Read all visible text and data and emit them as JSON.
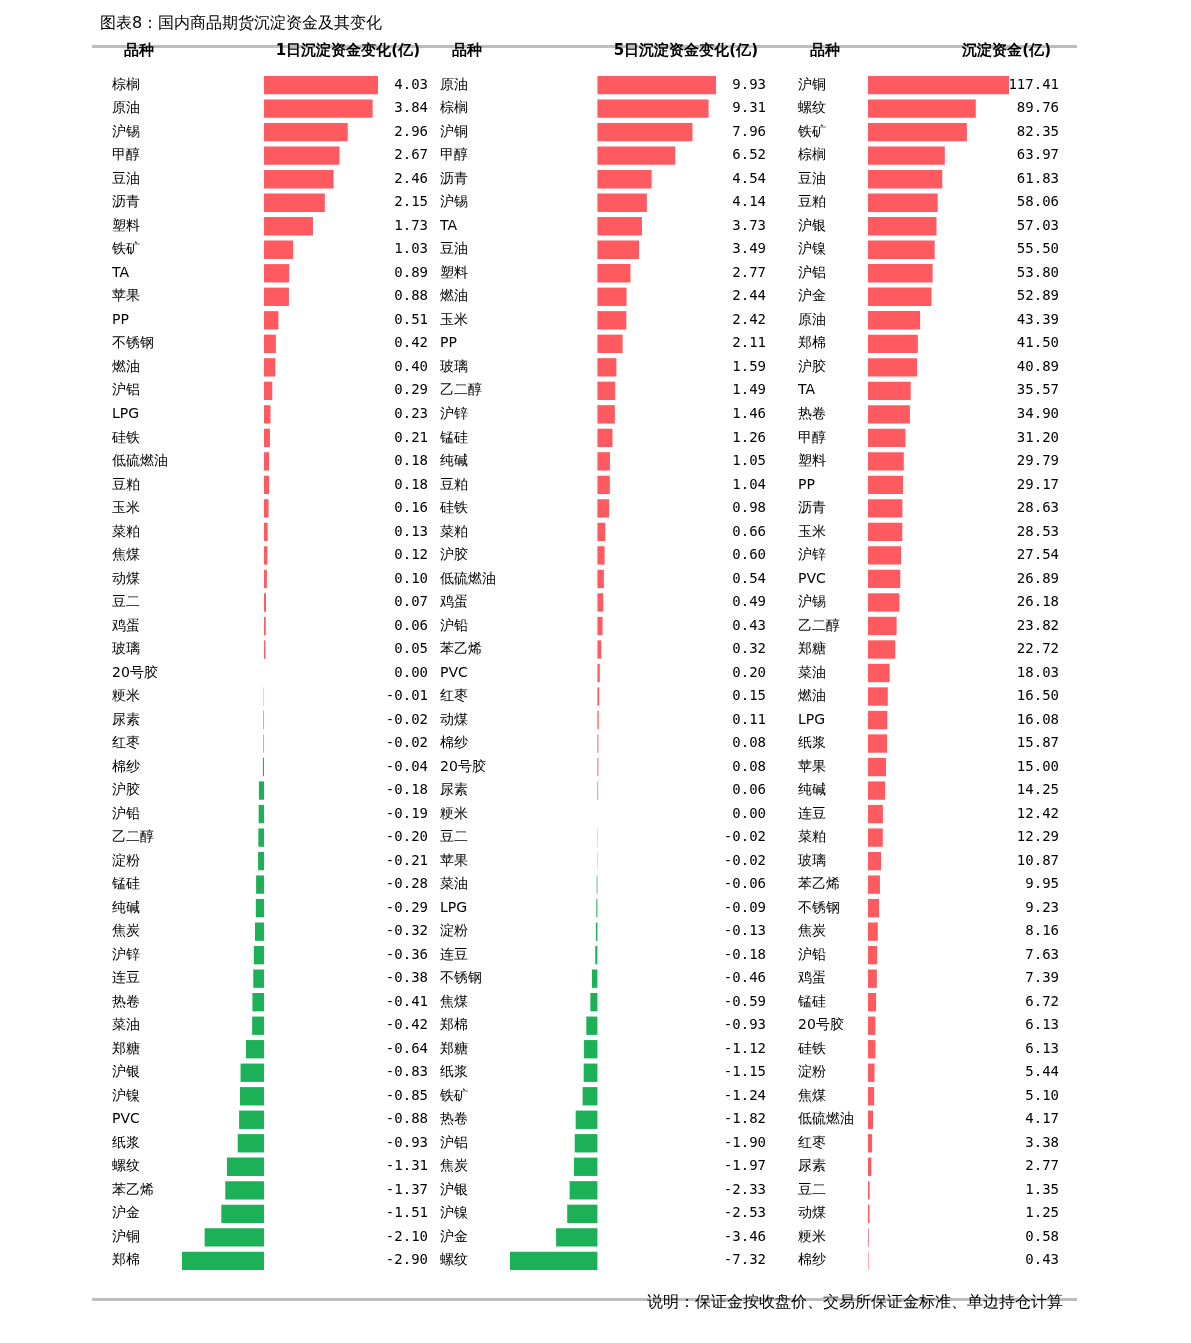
{
  "chart_data": [
    {
      "type": "bar",
      "orientation": "horizontal",
      "title": "图表8：国内商品期货沉淀资金及其变化",
      "ylabel": "品种",
      "xlabel": "1日沉淀资金变化(亿)",
      "tick_labels": "y",
      "categories": [
        "棕榈",
        "原油",
        "沪锡",
        "甲醇",
        "豆油",
        "沥青",
        "塑料",
        "铁矿",
        "TA",
        "苹果",
        "PP",
        "不锈钢",
        "燃油",
        "沪铝",
        "LPG",
        "硅铁",
        "低硫燃油",
        "豆粕",
        "玉米",
        "菜粕",
        "焦煤",
        "动煤",
        "豆二",
        "鸡蛋",
        "玻璃",
        "20号胶",
        "粳米",
        "尿素",
        "红枣",
        "棉纱",
        "沪胶",
        "沪铅",
        "乙二醇",
        "淀粉",
        "锰硅",
        "纯碱",
        "焦炭",
        "沪锌",
        "连豆",
        "热卷",
        "菜油",
        "郑糖",
        "沪银",
        "沪镍",
        "PVC",
        "纸浆",
        "螺纹",
        "苯乙烯",
        "沪金",
        "沪铜",
        "郑棉"
      ],
      "values": [
        4.03,
        3.84,
        2.96,
        2.67,
        2.46,
        2.15,
        1.73,
        1.03,
        0.89,
        0.88,
        0.51,
        0.42,
        0.4,
        0.29,
        0.23,
        0.21,
        0.18,
        0.18,
        0.16,
        0.13,
        0.12,
        0.1,
        0.07,
        0.06,
        0.05,
        0.0,
        -0.01,
        -0.02,
        -0.02,
        -0.04,
        -0.18,
        -0.19,
        -0.2,
        -0.21,
        -0.28,
        -0.29,
        -0.32,
        -0.36,
        -0.38,
        -0.41,
        -0.42,
        -0.64,
        -0.83,
        -0.85,
        -0.88,
        -0.93,
        -1.31,
        -1.37,
        -1.51,
        -2.1,
        -2.9
      ],
      "value_labels": [
        "4.03",
        "3.84",
        "2.96",
        "2.67",
        "2.46",
        "2.15",
        "1.73",
        "1.03",
        "0.89",
        "0.88",
        "0.51",
        "0.42",
        "0.40",
        "0.29",
        "0.23",
        "0.21",
        "0.18",
        "0.18",
        "0.16",
        "0.13",
        "0.12",
        "0.10",
        "0.07",
        "0.06",
        "0.05",
        "0.00",
        "-0.01",
        "-0.02",
        "-0.02",
        "-0.04",
        "-0.18",
        "-0.19",
        "-0.20",
        "-0.21",
        "-0.28",
        "-0.29",
        "-0.32",
        "-0.36",
        "-0.38",
        "-0.41",
        "-0.42",
        "-0.64",
        "-0.83",
        "-0.85",
        "-0.88",
        "-0.93",
        "-1.31",
        "-1.37",
        "-1.51",
        "-2.10",
        "-2.90"
      ],
      "colors": [
        "#ff5a5f",
        "#ff5a5f",
        "#ff5a5f",
        "#ff5a5f",
        "#ff5a5f",
        "#ff5a5f",
        "#ff5a5f",
        "#ff5a5f",
        "#ff5a5f",
        "#ff5a5f",
        "#ff5a5f",
        "#ff5a5f",
        "#ff5a5f",
        "#ff5a5f",
        "#ff5a5f",
        "#ff5a5f",
        "#ff5a5f",
        "#ff5a5f",
        "#ff5a5f",
        "#ff5a5f",
        "#ff5a5f",
        "#ff5a5f",
        "#ff5a5f",
        "#ff5a5f",
        "#ff5a5f",
        "#ff5a5f",
        "#1db157",
        "#1db157",
        "#1db157",
        "#1db157",
        "#1db157",
        "#1db157",
        "#1db157",
        "#1db157",
        "#1db157",
        "#1db157",
        "#1db157",
        "#1db157",
        "#1db157",
        "#1db157",
        "#1db157",
        "#1db157",
        "#1db157",
        "#1db157",
        "#1db157",
        "#1db157",
        "#1db157",
        "#1db157",
        "#1db157",
        "#1db157",
        "#1db157"
      ]
    },
    {
      "type": "bar",
      "orientation": "horizontal",
      "ylabel": "品种",
      "xlabel": "5日沉淀资金变化(亿)",
      "tick_labels": "y",
      "categories": [
        "原油",
        "棕榈",
        "沪铜",
        "甲醇",
        "沥青",
        "沪锡",
        "TA",
        "豆油",
        "塑料",
        "燃油",
        "玉米",
        "PP",
        "玻璃",
        "乙二醇",
        "沪锌",
        "锰硅",
        "纯碱",
        "豆粕",
        "硅铁",
        "菜粕",
        "沪胶",
        "低硫燃油",
        "鸡蛋",
        "沪铅",
        "苯乙烯",
        "PVC",
        "红枣",
        "动煤",
        "棉纱",
        "20号胶",
        "尿素",
        "粳米",
        "豆二",
        "苹果",
        "菜油",
        "LPG",
        "淀粉",
        "连豆",
        "不锈钢",
        "焦煤",
        "郑棉",
        "郑糖",
        "纸浆",
        "铁矿",
        "热卷",
        "沪铝",
        "焦炭",
        "沪银",
        "沪镍",
        "沪金",
        "螺纹"
      ],
      "values": [
        9.93,
        9.31,
        7.96,
        6.52,
        4.54,
        4.14,
        3.73,
        3.49,
        2.77,
        2.44,
        2.42,
        2.11,
        1.59,
        1.49,
        1.46,
        1.26,
        1.05,
        1.04,
        0.98,
        0.66,
        0.6,
        0.54,
        0.49,
        0.43,
        0.32,
        0.2,
        0.15,
        0.11,
        0.08,
        0.08,
        0.06,
        0.0,
        -0.02,
        -0.02,
        -0.06,
        -0.09,
        -0.13,
        -0.18,
        -0.46,
        -0.59,
        -0.93,
        -1.12,
        -1.15,
        -1.24,
        -1.82,
        -1.9,
        -1.97,
        -2.33,
        -2.53,
        -3.46,
        -7.32
      ],
      "value_labels": [
        "9.93",
        "9.31",
        "7.96",
        "6.52",
        "4.54",
        "4.14",
        "3.73",
        "3.49",
        "2.77",
        "2.44",
        "2.42",
        "2.11",
        "1.59",
        "1.49",
        "1.46",
        "1.26",
        "1.05",
        "1.04",
        "0.98",
        "0.66",
        "0.60",
        "0.54",
        "0.49",
        "0.43",
        "0.32",
        "0.20",
        "0.15",
        "0.11",
        "0.08",
        "0.08",
        "0.06",
        "0.00",
        "-0.02",
        "-0.02",
        "-0.06",
        "-0.09",
        "-0.13",
        "-0.18",
        "-0.46",
        "-0.59",
        "-0.93",
        "-1.12",
        "-1.15",
        "-1.24",
        "-1.82",
        "-1.90",
        "-1.97",
        "-2.33",
        "-2.53",
        "-3.46",
        "-7.32"
      ],
      "colors": [
        "#ff5a5f",
        "#ff5a5f",
        "#ff5a5f",
        "#ff5a5f",
        "#ff5a5f",
        "#ff5a5f",
        "#ff5a5f",
        "#ff5a5f",
        "#ff5a5f",
        "#ff5a5f",
        "#ff5a5f",
        "#ff5a5f",
        "#ff5a5f",
        "#ff5a5f",
        "#ff5a5f",
        "#ff5a5f",
        "#ff5a5f",
        "#ff5a5f",
        "#ff5a5f",
        "#ff5a5f",
        "#ff5a5f",
        "#ff5a5f",
        "#ff5a5f",
        "#ff5a5f",
        "#ff5a5f",
        "#ff5a5f",
        "#ff5a5f",
        "#ff5a5f",
        "#ff5a5f",
        "#ff5a5f",
        "#ff5a5f",
        "#ff5a5f",
        "#1db157",
        "#1db157",
        "#1db157",
        "#1db157",
        "#1db157",
        "#1db157",
        "#1db157",
        "#1db157",
        "#1db157",
        "#1db157",
        "#1db157",
        "#1db157",
        "#1db157",
        "#1db157",
        "#1db157",
        "#1db157",
        "#1db157",
        "#1db157",
        "#1db157"
      ]
    },
    {
      "type": "bar",
      "orientation": "horizontal",
      "ylabel": "品种",
      "xlabel": "沉淀资金(亿)",
      "tick_labels": "y",
      "categories": [
        "沪铜",
        "螺纹",
        "铁矿",
        "棕榈",
        "豆油",
        "豆粕",
        "沪银",
        "沪镍",
        "沪铝",
        "沪金",
        "原油",
        "郑棉",
        "沪胶",
        "TA",
        "热卷",
        "甲醇",
        "塑料",
        "PP",
        "沥青",
        "玉米",
        "沪锌",
        "PVC",
        "沪锡",
        "乙二醇",
        "郑糖",
        "菜油",
        "燃油",
        "LPG",
        "纸浆",
        "苹果",
        "纯碱",
        "连豆",
        "菜粕",
        "玻璃",
        "苯乙烯",
        "不锈钢",
        "焦炭",
        "沪铅",
        "鸡蛋",
        "锰硅",
        "20号胶",
        "硅铁",
        "淀粉",
        "焦煤",
        "低硫燃油",
        "红枣",
        "尿素",
        "豆二",
        "动煤",
        "粳米",
        "棉纱"
      ],
      "values": [
        117.41,
        89.76,
        82.35,
        63.97,
        61.83,
        58.06,
        57.03,
        55.5,
        53.8,
        52.89,
        43.39,
        41.5,
        40.89,
        35.57,
        34.9,
        31.2,
        29.79,
        29.17,
        28.63,
        28.53,
        27.54,
        26.89,
        26.18,
        23.82,
        22.72,
        18.03,
        16.5,
        16.08,
        15.87,
        15.0,
        14.25,
        12.42,
        12.29,
        10.87,
        9.95,
        9.23,
        8.16,
        7.63,
        7.39,
        6.72,
        6.13,
        6.13,
        5.44,
        5.1,
        4.17,
        3.38,
        2.77,
        1.35,
        1.25,
        0.58,
        0.43
      ],
      "value_labels": [
        "117.41",
        "89.76",
        "82.35",
        "63.97",
        "61.83",
        "58.06",
        "57.03",
        "55.50",
        "53.80",
        "52.89",
        "43.39",
        "41.50",
        "40.89",
        "35.57",
        "34.90",
        "31.20",
        "29.79",
        "29.17",
        "28.63",
        "28.53",
        "27.54",
        "26.89",
        "26.18",
        "23.82",
        "22.72",
        "18.03",
        "16.50",
        "16.08",
        "15.87",
        "15.00",
        "14.25",
        "12.42",
        "12.29",
        "10.87",
        "9.95",
        "9.23",
        "8.16",
        "7.63",
        "7.39",
        "6.72",
        "6.13",
        "6.13",
        "5.44",
        "5.10",
        "4.17",
        "3.38",
        "2.77",
        "1.35",
        "1.25",
        "0.58",
        "0.43"
      ],
      "color": "#ff5a5f",
      "annotations": [
        "说明：保证金按收盘价、交易所保证金标准、单边持仓计算"
      ]
    }
  ]
}
